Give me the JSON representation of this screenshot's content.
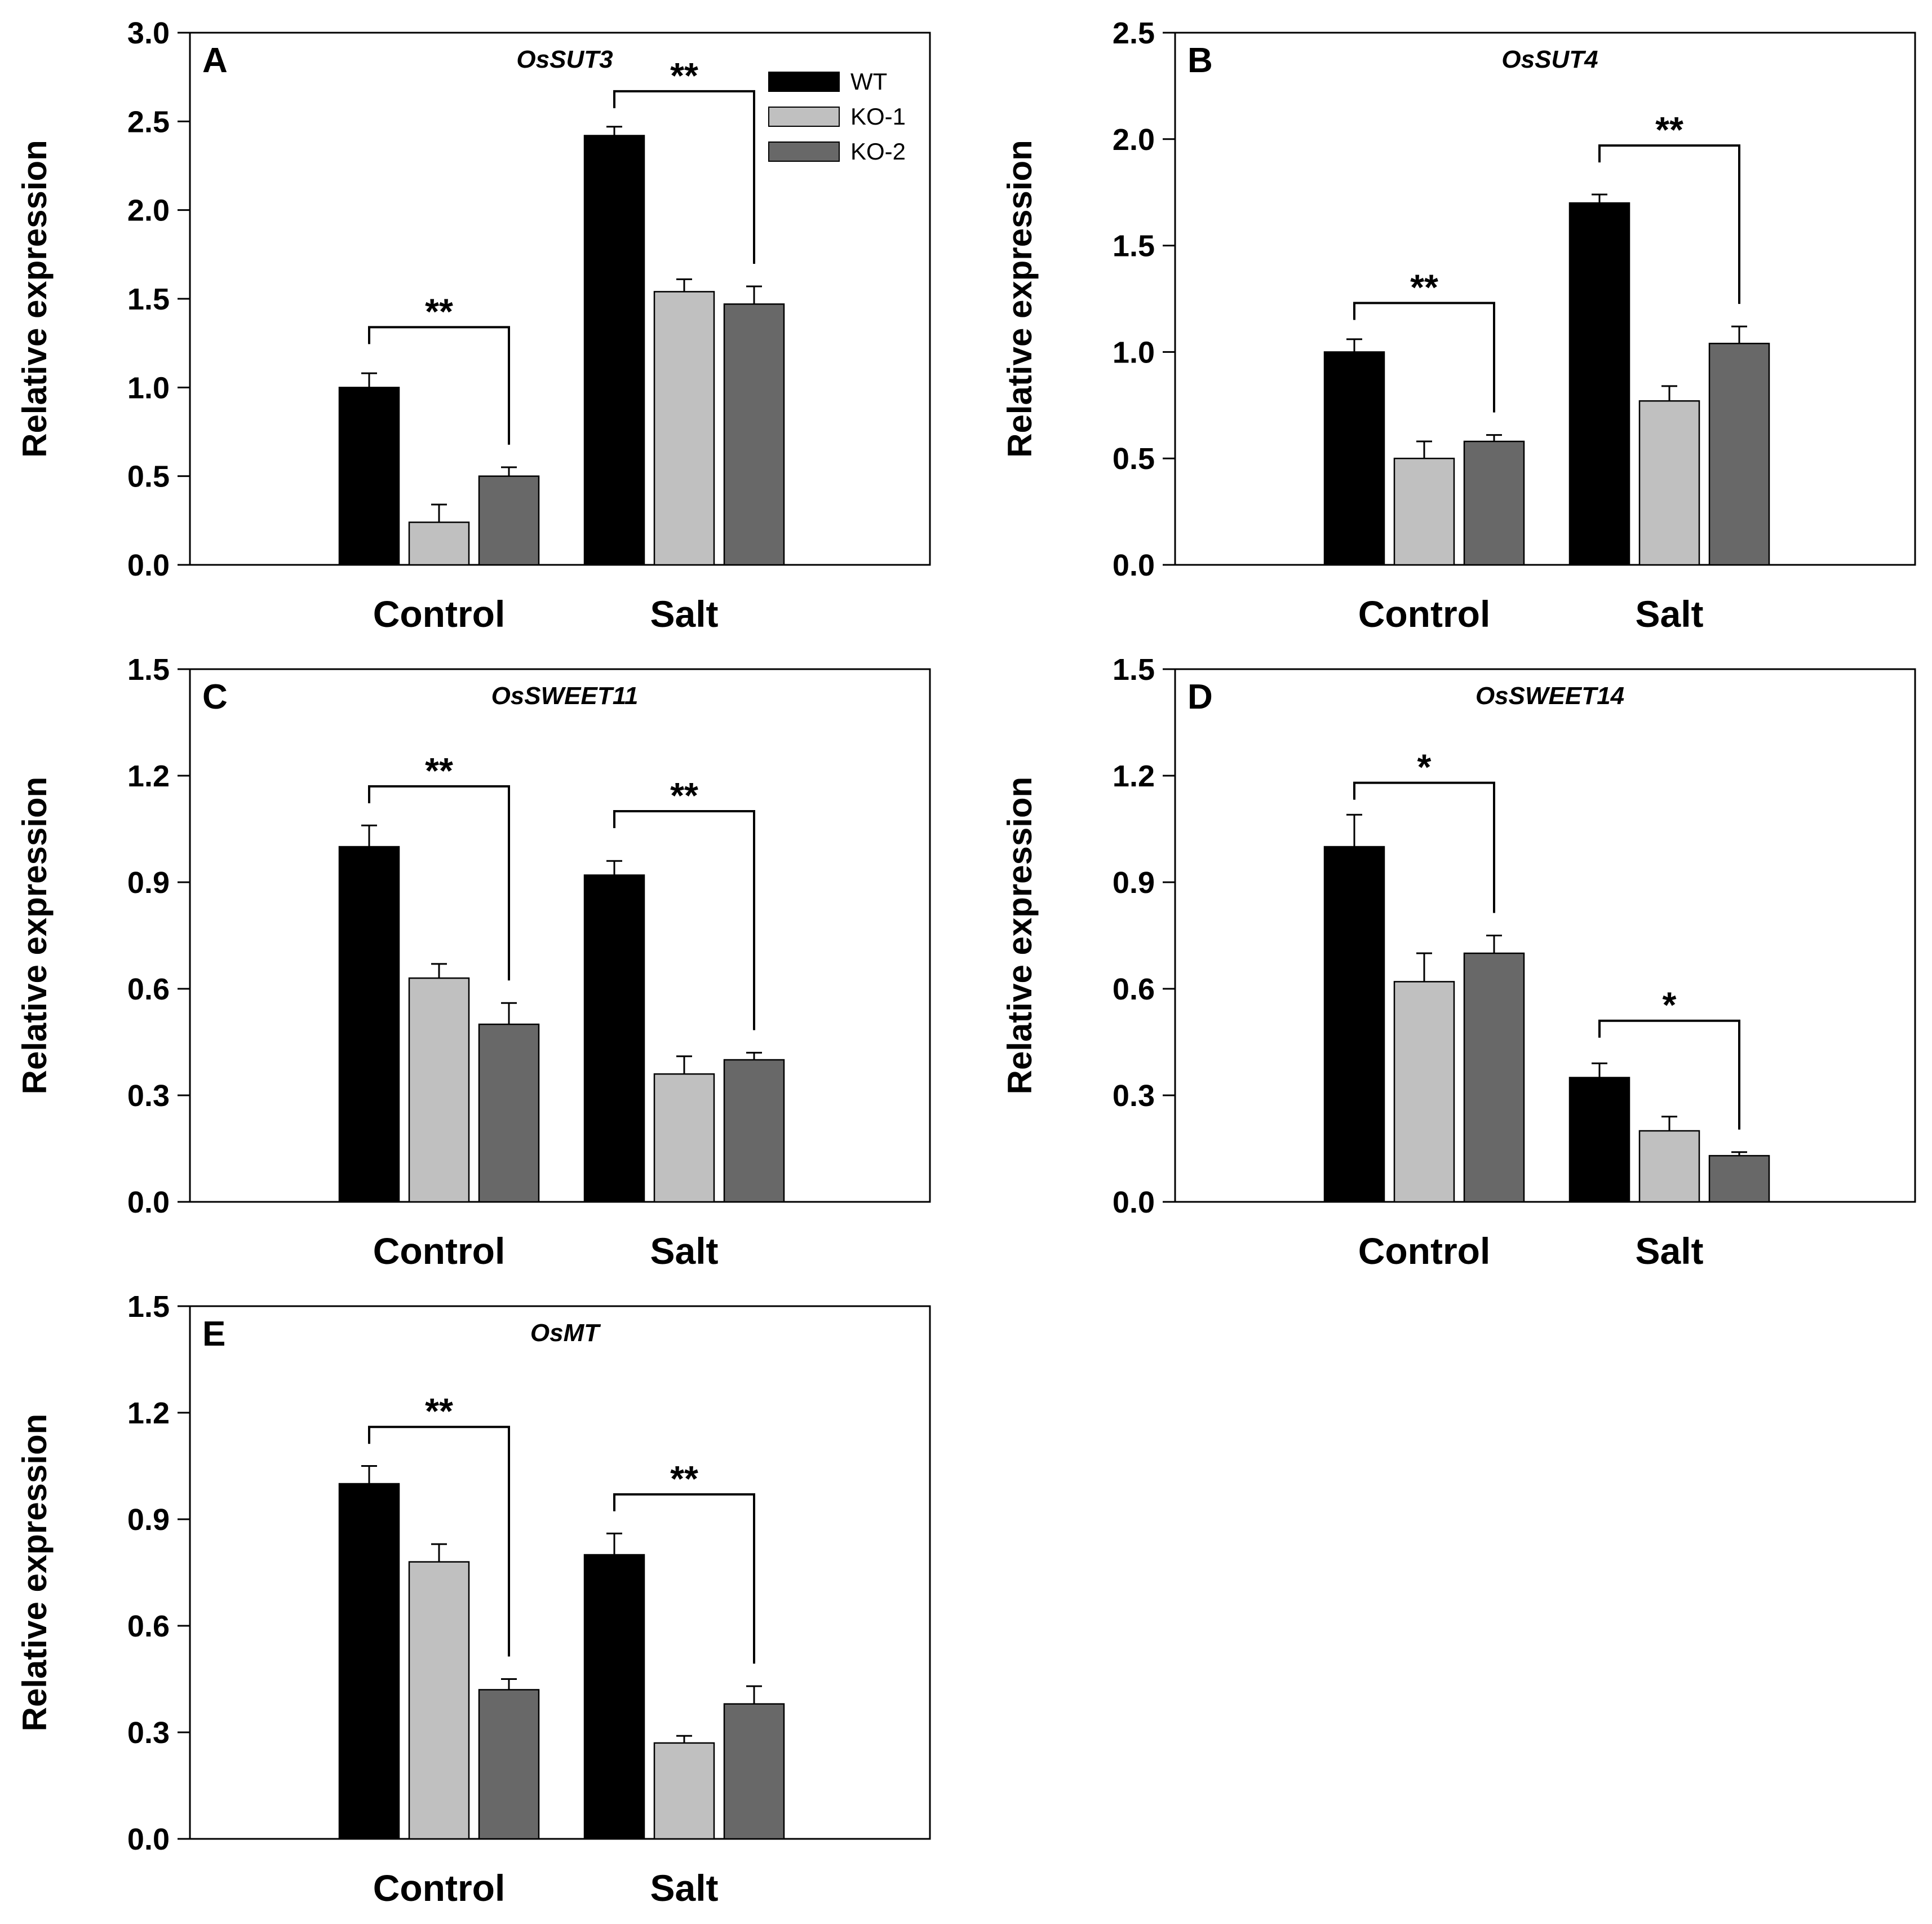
{
  "colors": {
    "WT": "#000000",
    "KO-1": "#c0c0c0",
    "KO-2": "#686868"
  },
  "legend": [
    "WT",
    "KO-1",
    "KO-2"
  ],
  "chart_data": [
    {
      "panel": "A",
      "title": "OsSUT3",
      "type": "bar",
      "ylabel": "Relative expression",
      "ylim": [
        0,
        3.0
      ],
      "yticks": [
        "0.0",
        "0.5",
        "1.0",
        "1.5",
        "2.0",
        "2.5",
        "3.0"
      ],
      "categories": [
        "Control",
        "Salt"
      ],
      "series": [
        {
          "name": "WT",
          "values": [
            1.0,
            2.42
          ],
          "errors": [
            0.08,
            0.05
          ]
        },
        {
          "name": "KO-1",
          "values": [
            0.24,
            1.54
          ],
          "errors": [
            0.1,
            0.07
          ]
        },
        {
          "name": "KO-2",
          "values": [
            0.5,
            1.47
          ],
          "errors": [
            0.05,
            0.1
          ]
        }
      ],
      "significance": [
        {
          "category": "Control",
          "label": "**",
          "level": 1.34
        },
        {
          "category": "Salt",
          "label": "**",
          "level": 2.67
        }
      ],
      "legend_position": "top-right"
    },
    {
      "panel": "B",
      "title": "OsSUT4",
      "type": "bar",
      "ylabel": "Relative expression",
      "ylim": [
        0,
        2.5
      ],
      "yticks": [
        "0.0",
        "0.5",
        "1.0",
        "1.5",
        "2.0",
        "2.5"
      ],
      "categories": [
        "Control",
        "Salt"
      ],
      "series": [
        {
          "name": "WT",
          "values": [
            1.0,
            1.7
          ],
          "errors": [
            0.06,
            0.04
          ]
        },
        {
          "name": "KO-1",
          "values": [
            0.5,
            0.77
          ],
          "errors": [
            0.08,
            0.07
          ]
        },
        {
          "name": "KO-2",
          "values": [
            0.58,
            1.04
          ],
          "errors": [
            0.03,
            0.08
          ]
        }
      ],
      "significance": [
        {
          "category": "Control",
          "label": "**",
          "level": 1.23
        },
        {
          "category": "Salt",
          "label": "**",
          "level": 1.97
        }
      ]
    },
    {
      "panel": "C",
      "title": "OsSWEET11",
      "type": "bar",
      "ylabel": "Relative expression",
      "ylim": [
        0,
        1.5
      ],
      "yticks": [
        "0.0",
        "0.3",
        "0.6",
        "0.9",
        "1.2",
        "1.5"
      ],
      "categories": [
        "Control",
        "Salt"
      ],
      "series": [
        {
          "name": "WT",
          "values": [
            1.0,
            0.92
          ],
          "errors": [
            0.06,
            0.04
          ]
        },
        {
          "name": "KO-1",
          "values": [
            0.63,
            0.36
          ],
          "errors": [
            0.04,
            0.05
          ]
        },
        {
          "name": "KO-2",
          "values": [
            0.5,
            0.4
          ],
          "errors": [
            0.06,
            0.02
          ]
        }
      ],
      "significance": [
        {
          "category": "Control",
          "label": "**",
          "level": 1.17
        },
        {
          "category": "Salt",
          "label": "**",
          "level": 1.1
        }
      ]
    },
    {
      "panel": "D",
      "title": "OsSWEET14",
      "type": "bar",
      "ylabel": "Relative expression",
      "ylim": [
        0,
        1.5
      ],
      "yticks": [
        "0.0",
        "0.3",
        "0.6",
        "0.9",
        "1.2",
        "1.5"
      ],
      "categories": [
        "Control",
        "Salt"
      ],
      "series": [
        {
          "name": "WT",
          "values": [
            1.0,
            0.35
          ],
          "errors": [
            0.09,
            0.04
          ]
        },
        {
          "name": "KO-1",
          "values": [
            0.62,
            0.2
          ],
          "errors": [
            0.08,
            0.04
          ]
        },
        {
          "name": "KO-2",
          "values": [
            0.7,
            0.13
          ],
          "errors": [
            0.05,
            0.01
          ]
        }
      ],
      "significance": [
        {
          "category": "Control",
          "label": "*",
          "level": 1.18
        },
        {
          "category": "Salt",
          "label": "*",
          "level": 0.51
        }
      ]
    },
    {
      "panel": "E",
      "title": "OsMT",
      "type": "bar",
      "ylabel": "Relative expression",
      "ylim": [
        0,
        1.5
      ],
      "yticks": [
        "0.0",
        "0.3",
        "0.6",
        "0.9",
        "1.2",
        "1.5"
      ],
      "categories": [
        "Control",
        "Salt"
      ],
      "series": [
        {
          "name": "WT",
          "values": [
            1.0,
            0.8
          ],
          "errors": [
            0.05,
            0.06
          ]
        },
        {
          "name": "KO-1",
          "values": [
            0.78,
            0.27
          ],
          "errors": [
            0.05,
            0.02
          ]
        },
        {
          "name": "KO-2",
          "values": [
            0.42,
            0.38
          ],
          "errors": [
            0.03,
            0.05
          ]
        }
      ],
      "significance": [
        {
          "category": "Control",
          "label": "**",
          "level": 1.16
        },
        {
          "category": "Salt",
          "label": "**",
          "level": 0.97
        }
      ]
    }
  ]
}
